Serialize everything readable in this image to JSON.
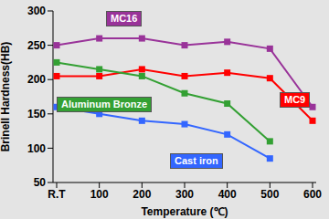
{
  "chart_data": {
    "type": "line",
    "x_label": "Temperature (℃)",
    "y_label": "Brinell Hardness(HB)",
    "categories": [
      "R.T",
      "100",
      "200",
      "300",
      "400",
      "500",
      "600"
    ],
    "series": [
      {
        "name": "MC16",
        "color": "#993399",
        "marker": "square",
        "values": [
          250,
          260,
          260,
          250,
          255,
          245,
          160
        ]
      },
      {
        "name": "MC9",
        "color": "#ff0000",
        "marker": "square",
        "values": [
          205,
          205,
          215,
          205,
          210,
          202,
          140
        ]
      },
      {
        "name": "Aluminum Bronze",
        "color": "#33a033",
        "marker": "square",
        "values": [
          225,
          215,
          205,
          180,
          165,
          110,
          null
        ]
      },
      {
        "name": "Cast iron",
        "color": "#3366ff",
        "marker": "square",
        "values": [
          160,
          150,
          140,
          135,
          120,
          85,
          null
        ]
      }
    ],
    "ylim": [
      50,
      300
    ],
    "yticks": [
      50,
      100,
      150,
      200,
      250,
      300
    ],
    "grid": false
  }
}
